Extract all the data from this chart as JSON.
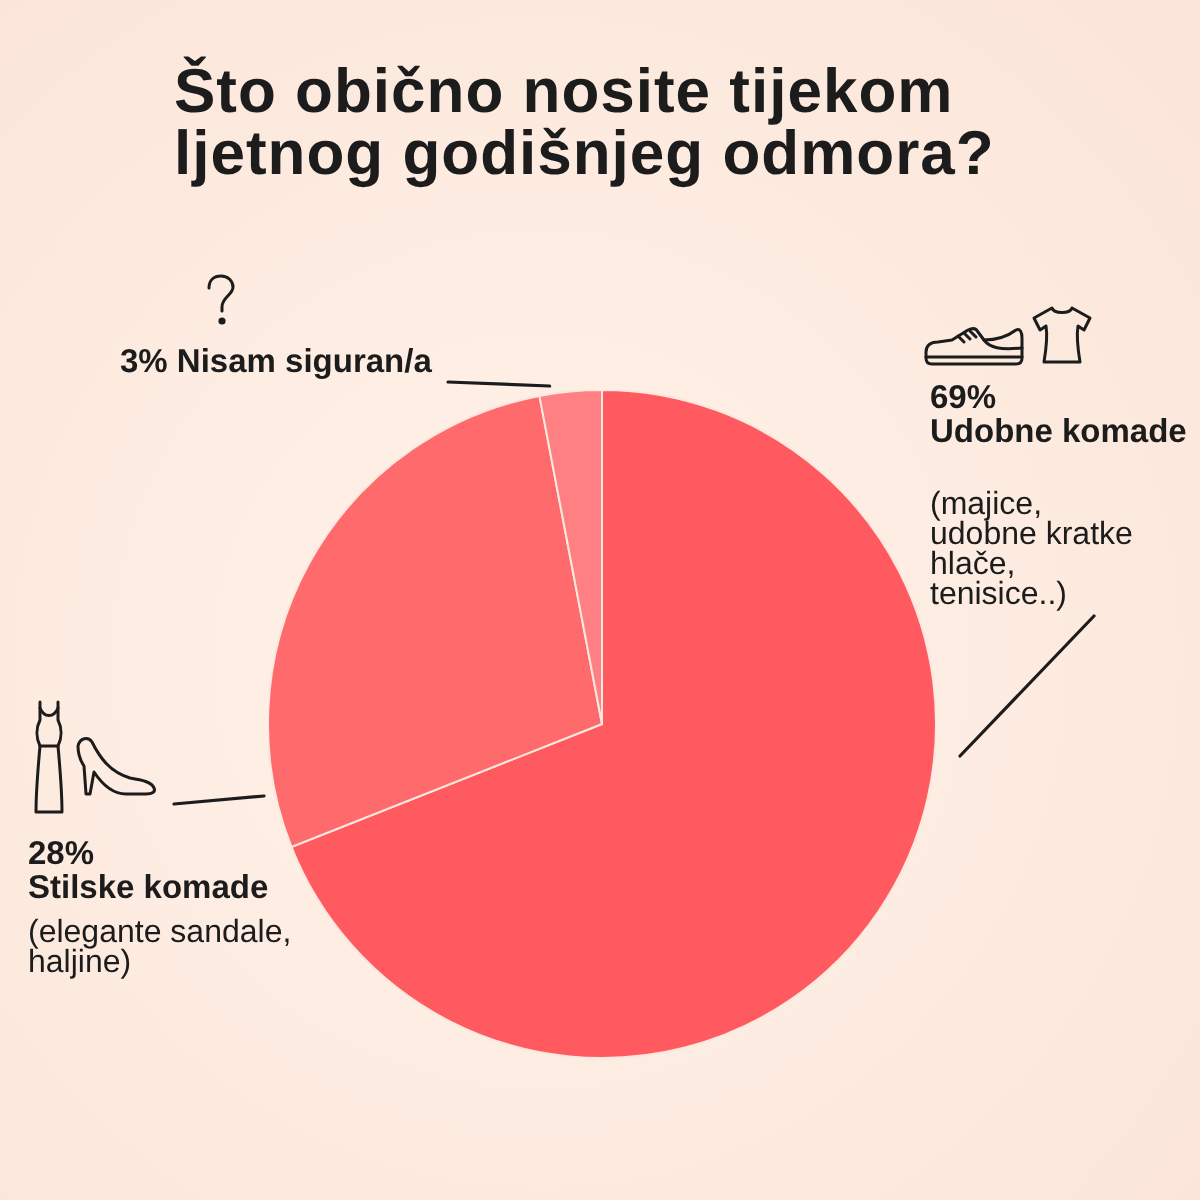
{
  "chart_data": {
    "type": "pie",
    "title": "Što obično nosite tijekom ljetnog godišnjeg odmora?",
    "categories": [
      "Udobne komade",
      "Stilske komade",
      "Nisam siguran/a"
    ],
    "values": [
      69,
      28,
      3
    ],
    "value_labels": [
      "69%",
      "28%",
      "3%"
    ],
    "colors": [
      "#ff5a60",
      "#ff6b6d",
      "#ff8083"
    ],
    "annotations": [
      "(majice, udobne kratke hlače, tenisice..)",
      "(elegante sandale, haljine)"
    ]
  }
}
